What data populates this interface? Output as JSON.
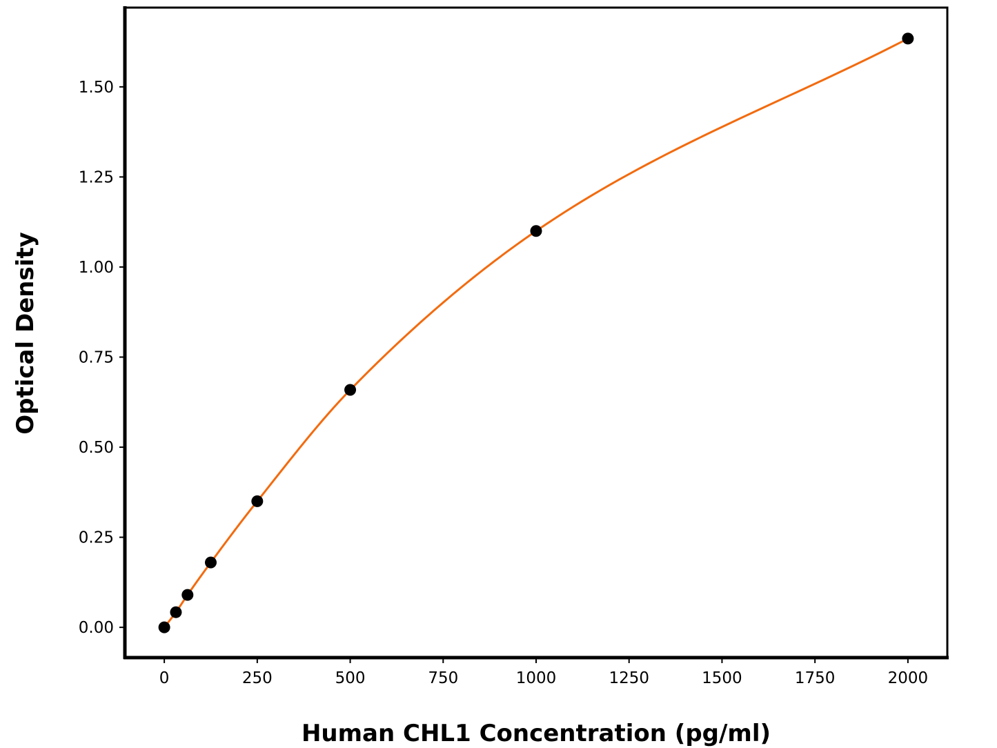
{
  "chart_data": {
    "type": "line",
    "title": "",
    "xlabel": "Human CHL1 Concentration (pg/ml)",
    "ylabel": "Optical Density",
    "xlim": [
      -106,
      2106
    ],
    "ylim": [
      -0.084,
      1.72
    ],
    "xticks": [
      0,
      250,
      500,
      750,
      1000,
      1250,
      1500,
      1750,
      2000
    ],
    "xtick_labels": [
      "0",
      "250",
      "500",
      "750",
      "1000",
      "1250",
      "1500",
      "1750",
      "2000"
    ],
    "yticks": [
      0,
      0.25,
      0.5,
      0.75,
      1.0,
      1.25,
      1.5
    ],
    "ytick_labels": [
      "0.00",
      "0.25",
      "0.50",
      "0.75",
      "1.00",
      "1.25",
      "1.50"
    ],
    "grid": false,
    "series": [
      {
        "x": [
          0,
          31.25,
          62.5,
          125,
          250,
          500,
          1000,
          2000
        ],
        "y": [
          0.0,
          0.042,
          0.09,
          0.18,
          0.35,
          0.659,
          1.1,
          1.634
        ],
        "marker_color": "#000000",
        "line_color": "#f26b0f",
        "fit": "smooth-curve"
      }
    ]
  }
}
